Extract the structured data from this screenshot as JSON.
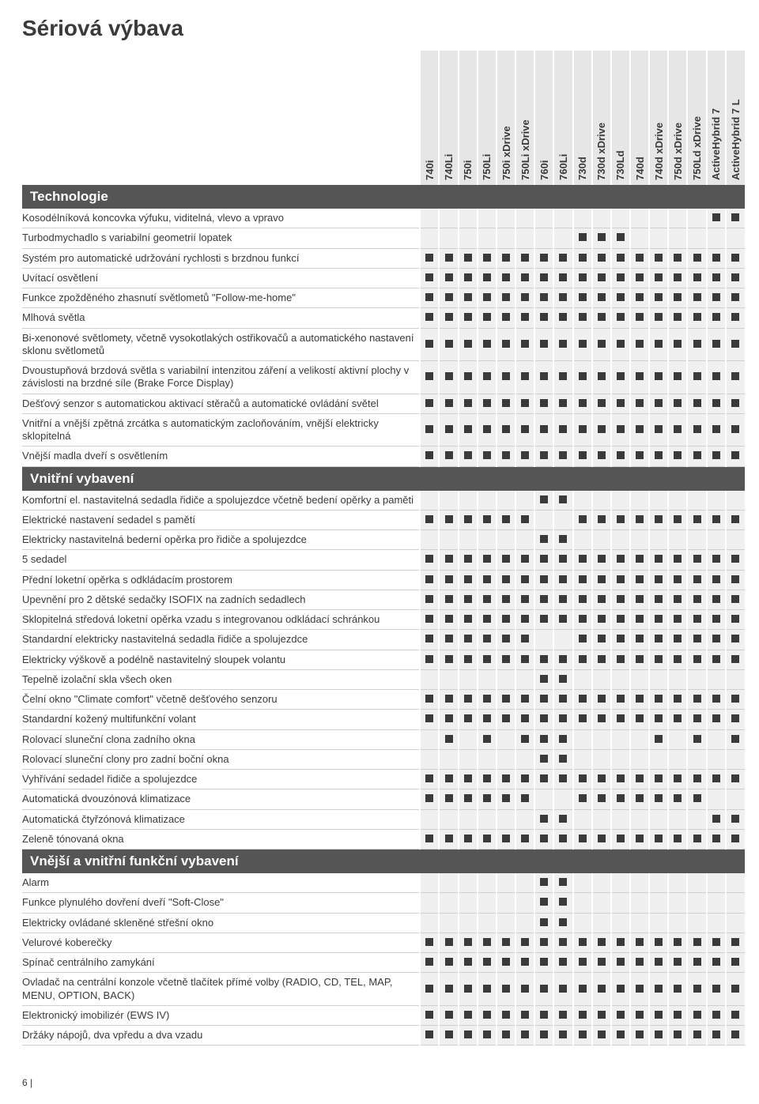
{
  "page_title": "Sériová výbava",
  "page_number": "6 |",
  "models": [
    "740i",
    "740Li",
    "750i",
    "750Li",
    "750i xDrive",
    "750Li xDrive",
    "760i",
    "760Li",
    "730d",
    "730d xDrive",
    "730Ld",
    "740d",
    "740d xDrive",
    "750d xDrive",
    "750Ld xDrive",
    "ActiveHybrid 7",
    "ActiveHybrid 7 L"
  ],
  "sections": [
    {
      "title": "Technologie",
      "rows": [
        {
          "label": "Kosodélníková koncovka výfuku, viditelná, vlevo a vpravo",
          "marks": [
            0,
            0,
            0,
            0,
            0,
            0,
            0,
            0,
            0,
            0,
            0,
            0,
            0,
            0,
            0,
            1,
            1
          ]
        },
        {
          "label": "Turbodmychadlo s variabilní geometrií lopatek",
          "marks": [
            0,
            0,
            0,
            0,
            0,
            0,
            0,
            0,
            1,
            1,
            1,
            0,
            0,
            0,
            0,
            0,
            0
          ]
        },
        {
          "label": "Systém pro automatické udržování rychlosti s brzdnou funkcí",
          "marks": [
            1,
            1,
            1,
            1,
            1,
            1,
            1,
            1,
            1,
            1,
            1,
            1,
            1,
            1,
            1,
            1,
            1
          ]
        },
        {
          "label": "Uvítací osvětlení",
          "marks": [
            1,
            1,
            1,
            1,
            1,
            1,
            1,
            1,
            1,
            1,
            1,
            1,
            1,
            1,
            1,
            1,
            1
          ]
        },
        {
          "label": "Funkce zpožděného zhasnutí světlometů \"Follow-me-home\"",
          "marks": [
            1,
            1,
            1,
            1,
            1,
            1,
            1,
            1,
            1,
            1,
            1,
            1,
            1,
            1,
            1,
            1,
            1
          ]
        },
        {
          "label": "Mlhová světla",
          "marks": [
            1,
            1,
            1,
            1,
            1,
            1,
            1,
            1,
            1,
            1,
            1,
            1,
            1,
            1,
            1,
            1,
            1
          ]
        },
        {
          "label": "Bi-xenonové světlomety, včetně vysokotlakých ostřikovačů a automatického nastavení sklonu světlometů",
          "marks": [
            1,
            1,
            1,
            1,
            1,
            1,
            1,
            1,
            1,
            1,
            1,
            1,
            1,
            1,
            1,
            1,
            1
          ]
        },
        {
          "label": "Dvoustupňová brzdová světla s variabilní intenzitou záření a velikostí aktivní plochy v závislosti na brzdné síle (Brake Force Display)",
          "marks": [
            1,
            1,
            1,
            1,
            1,
            1,
            1,
            1,
            1,
            1,
            1,
            1,
            1,
            1,
            1,
            1,
            1
          ]
        },
        {
          "label": "Dešťový senzor s automatickou aktivací stěračů a automatické ovládání světel",
          "marks": [
            1,
            1,
            1,
            1,
            1,
            1,
            1,
            1,
            1,
            1,
            1,
            1,
            1,
            1,
            1,
            1,
            1
          ]
        },
        {
          "label": "Vnitřní a vnější zpětná zrcátka s automatickým zacloňováním, vnější elektricky sklopitelná",
          "marks": [
            1,
            1,
            1,
            1,
            1,
            1,
            1,
            1,
            1,
            1,
            1,
            1,
            1,
            1,
            1,
            1,
            1
          ]
        },
        {
          "label": "Vnější madla dveří s osvětlením",
          "marks": [
            1,
            1,
            1,
            1,
            1,
            1,
            1,
            1,
            1,
            1,
            1,
            1,
            1,
            1,
            1,
            1,
            1
          ]
        }
      ]
    },
    {
      "title": "Vnitřní vybavení",
      "rows": [
        {
          "label": "Komfortní el. nastavitelná sedadla řidiče a spolujezdce včetně bedení opěrky a paměti",
          "marks": [
            0,
            0,
            0,
            0,
            0,
            0,
            1,
            1,
            0,
            0,
            0,
            0,
            0,
            0,
            0,
            0,
            0
          ]
        },
        {
          "label": "Elektrické nastavení sedadel s pamětí",
          "marks": [
            1,
            1,
            1,
            1,
            1,
            1,
            0,
            0,
            1,
            1,
            1,
            1,
            1,
            1,
            1,
            1,
            1
          ]
        },
        {
          "label": "Elektricky nastavitelná bederní opěrka pro řidiče a spolujezdce",
          "marks": [
            0,
            0,
            0,
            0,
            0,
            0,
            1,
            1,
            0,
            0,
            0,
            0,
            0,
            0,
            0,
            0,
            0
          ]
        },
        {
          "label": "5 sedadel",
          "marks": [
            1,
            1,
            1,
            1,
            1,
            1,
            1,
            1,
            1,
            1,
            1,
            1,
            1,
            1,
            1,
            1,
            1
          ]
        },
        {
          "label": "Přední loketní opěrka s odkládacím prostorem",
          "marks": [
            1,
            1,
            1,
            1,
            1,
            1,
            1,
            1,
            1,
            1,
            1,
            1,
            1,
            1,
            1,
            1,
            1
          ]
        },
        {
          "label": "Upevnění pro 2 dětské sedačky ISOFIX na zadních sedadlech",
          "marks": [
            1,
            1,
            1,
            1,
            1,
            1,
            1,
            1,
            1,
            1,
            1,
            1,
            1,
            1,
            1,
            1,
            1
          ]
        },
        {
          "label": "Sklopitelná středová loketní opěrka vzadu s integrovanou odkládací schránkou",
          "marks": [
            1,
            1,
            1,
            1,
            1,
            1,
            1,
            1,
            1,
            1,
            1,
            1,
            1,
            1,
            1,
            1,
            1
          ]
        },
        {
          "label": "Standardní elektricky nastavitelná sedadla řidiče a spolujezdce",
          "marks": [
            1,
            1,
            1,
            1,
            1,
            1,
            0,
            0,
            1,
            1,
            1,
            1,
            1,
            1,
            1,
            1,
            1
          ]
        },
        {
          "label": "Elektricky výškově a podélně nastavitelný sloupek volantu",
          "marks": [
            1,
            1,
            1,
            1,
            1,
            1,
            1,
            1,
            1,
            1,
            1,
            1,
            1,
            1,
            1,
            1,
            1
          ]
        },
        {
          "label": "Tepelně izolační skla všech oken",
          "marks": [
            0,
            0,
            0,
            0,
            0,
            0,
            1,
            1,
            0,
            0,
            0,
            0,
            0,
            0,
            0,
            0,
            0
          ]
        },
        {
          "label": "Čelní okno \"Climate comfort\" včetně dešťového senzoru",
          "marks": [
            1,
            1,
            1,
            1,
            1,
            1,
            1,
            1,
            1,
            1,
            1,
            1,
            1,
            1,
            1,
            1,
            1
          ]
        },
        {
          "label": "Standardní kožený multifunkční volant",
          "marks": [
            1,
            1,
            1,
            1,
            1,
            1,
            1,
            1,
            1,
            1,
            1,
            1,
            1,
            1,
            1,
            1,
            1
          ]
        },
        {
          "label": "Rolovací sluneční clona zadního okna",
          "marks": [
            0,
            1,
            0,
            1,
            0,
            1,
            1,
            1,
            0,
            0,
            0,
            0,
            1,
            0,
            1,
            0,
            1
          ]
        },
        {
          "label": "Rolovací sluneční clony pro zadní boční okna",
          "marks": [
            0,
            0,
            0,
            0,
            0,
            0,
            1,
            1,
            0,
            0,
            0,
            0,
            0,
            0,
            0,
            0,
            0
          ]
        },
        {
          "label": "Vyhřívání sedadel řidiče a spolujezdce",
          "marks": [
            1,
            1,
            1,
            1,
            1,
            1,
            1,
            1,
            1,
            1,
            1,
            1,
            1,
            1,
            1,
            1,
            1
          ]
        },
        {
          "label": "Automatická dvouzónová klimatizace",
          "marks": [
            1,
            1,
            1,
            1,
            1,
            1,
            0,
            0,
            1,
            1,
            1,
            1,
            1,
            1,
            1,
            0,
            0
          ]
        },
        {
          "label": "Automatická čtyřzónová klimatizace",
          "marks": [
            0,
            0,
            0,
            0,
            0,
            0,
            1,
            1,
            0,
            0,
            0,
            0,
            0,
            0,
            0,
            1,
            1
          ]
        },
        {
          "label": "Zeleně tónovaná okna",
          "marks": [
            1,
            1,
            1,
            1,
            1,
            1,
            1,
            1,
            1,
            1,
            1,
            1,
            1,
            1,
            1,
            1,
            1
          ]
        }
      ]
    },
    {
      "title": "Vnější a vnitřní funkční vybavení",
      "rows": [
        {
          "label": "Alarm",
          "marks": [
            0,
            0,
            0,
            0,
            0,
            0,
            1,
            1,
            0,
            0,
            0,
            0,
            0,
            0,
            0,
            0,
            0
          ]
        },
        {
          "label": "Funkce plynulého dovření dveří \"Soft-Close\"",
          "marks": [
            0,
            0,
            0,
            0,
            0,
            0,
            1,
            1,
            0,
            0,
            0,
            0,
            0,
            0,
            0,
            0,
            0
          ]
        },
        {
          "label": "Elektricky ovládané skleněné střešní okno",
          "marks": [
            0,
            0,
            0,
            0,
            0,
            0,
            1,
            1,
            0,
            0,
            0,
            0,
            0,
            0,
            0,
            0,
            0
          ]
        },
        {
          "label": "Velurové koberečky",
          "marks": [
            1,
            1,
            1,
            1,
            1,
            1,
            1,
            1,
            1,
            1,
            1,
            1,
            1,
            1,
            1,
            1,
            1
          ]
        },
        {
          "label": "Spínač centrálního zamykání",
          "marks": [
            1,
            1,
            1,
            1,
            1,
            1,
            1,
            1,
            1,
            1,
            1,
            1,
            1,
            1,
            1,
            1,
            1
          ]
        },
        {
          "label": "Ovladač na centrální konzole včetně tlačítek přímé volby (RADIO, CD, TEL, MAP, MENU, OPTION, BACK)",
          "marks": [
            1,
            1,
            1,
            1,
            1,
            1,
            1,
            1,
            1,
            1,
            1,
            1,
            1,
            1,
            1,
            1,
            1
          ]
        },
        {
          "label": "Elektronický imobilizér (EWS IV)",
          "marks": [
            1,
            1,
            1,
            1,
            1,
            1,
            1,
            1,
            1,
            1,
            1,
            1,
            1,
            1,
            1,
            1,
            1
          ]
        },
        {
          "label": "Držáky nápojů, dva vpředu a dva vzadu",
          "marks": [
            1,
            1,
            1,
            1,
            1,
            1,
            1,
            1,
            1,
            1,
            1,
            1,
            1,
            1,
            1,
            1,
            1
          ]
        }
      ]
    }
  ]
}
